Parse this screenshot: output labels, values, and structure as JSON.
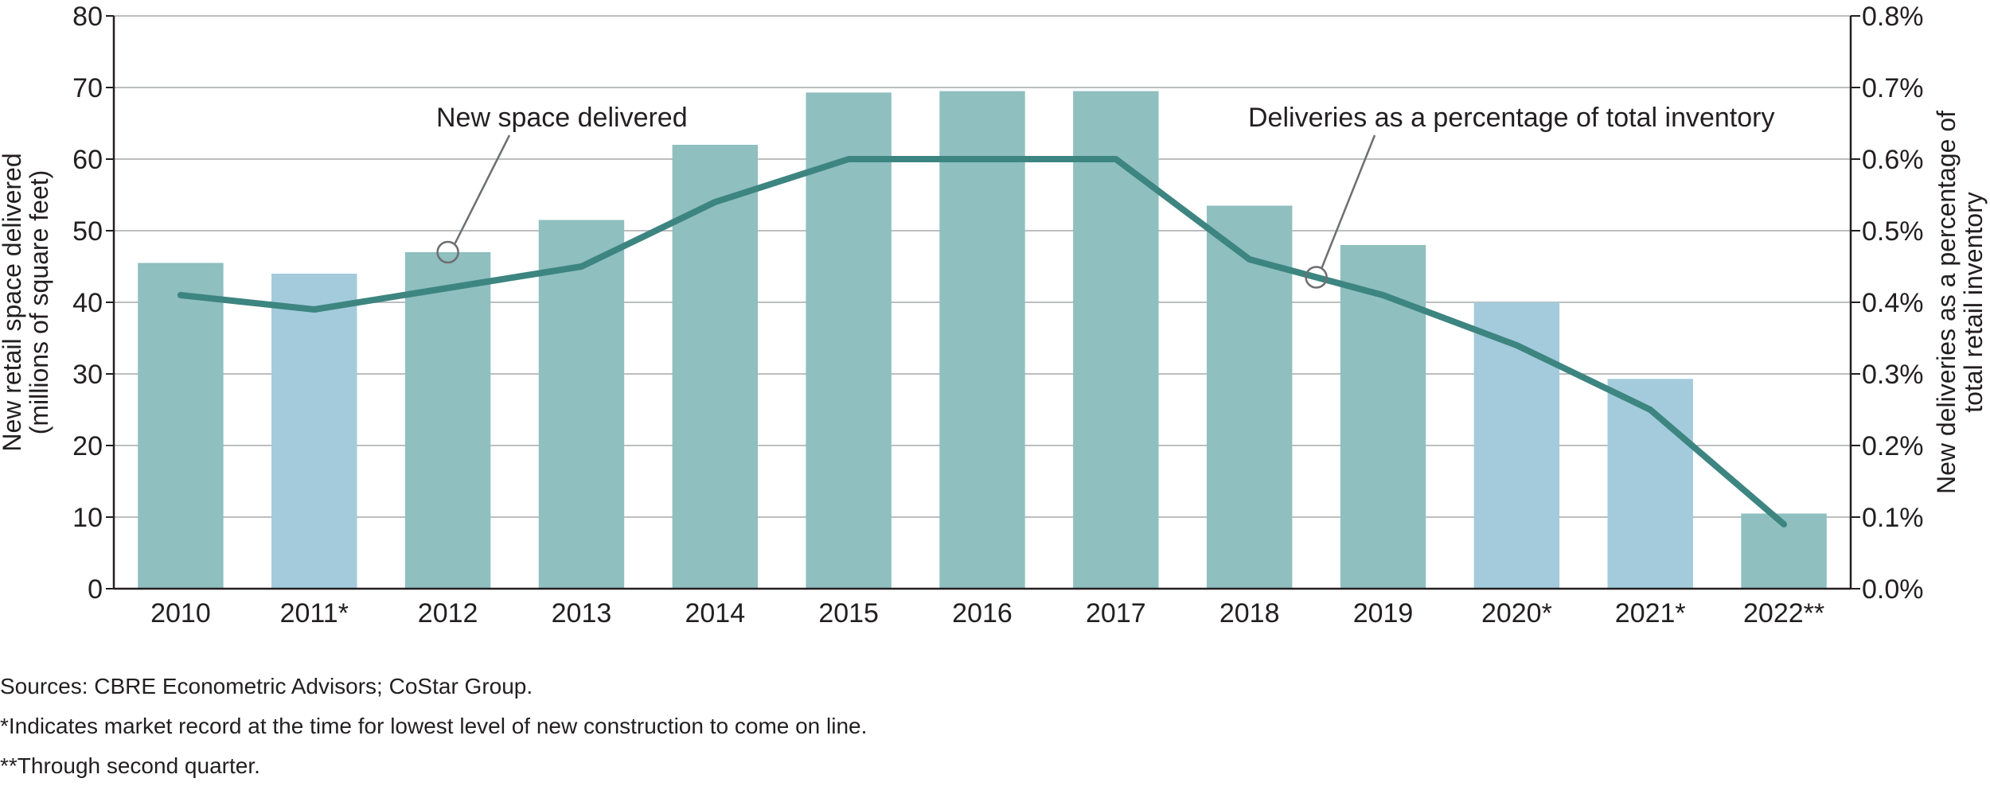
{
  "chart_data": {
    "type": "bar+line",
    "categories": [
      "2010",
      "2011*",
      "2012",
      "2013",
      "2014",
      "2015",
      "2016",
      "2017",
      "2018",
      "2019",
      "2020*",
      "2021*",
      "2022**"
    ],
    "series": [
      {
        "name": "New space delivered",
        "kind": "bar",
        "axis": "left",
        "values": [
          45.5,
          44,
          47,
          51.5,
          62,
          69.3,
          69.5,
          69.5,
          53.5,
          48,
          40,
          29.3,
          10.5
        ],
        "highlight": [
          false,
          true,
          false,
          false,
          false,
          false,
          false,
          false,
          false,
          false,
          true,
          true,
          false
        ]
      },
      {
        "name": "Deliveries as a percentage of total inventory",
        "kind": "line",
        "axis": "right",
        "values": [
          0.41,
          0.39,
          0.42,
          0.45,
          0.54,
          0.6,
          0.6,
          0.6,
          0.46,
          0.41,
          0.34,
          0.25,
          0.09
        ]
      }
    ],
    "ylim": [
      0,
      80
    ],
    "y2lim": [
      0,
      0.8
    ],
    "yticks": [
      "0",
      "10",
      "20",
      "30",
      "40",
      "50",
      "60",
      "70",
      "80"
    ],
    "y2ticks": [
      "0.0%",
      "0.1%",
      "0.2%",
      "0.3%",
      "0.4%",
      "0.5%",
      "0.6%",
      "0.7%",
      "0.8%"
    ],
    "ylabel": [
      "New retail space delivered",
      "(millions of square feet)"
    ],
    "y2label": [
      "New deliveries as a percentage of",
      "total retail inventory"
    ],
    "annotations": [
      {
        "text": "New space delivered",
        "target_series": "New space delivered",
        "target_index": 2
      },
      {
        "text": "Deliveries as a percentage of total inventory",
        "target_series": "Deliveries as a percentage of total inventory",
        "target_index": 8.5
      }
    ],
    "grid": true,
    "colors": {
      "bar": "#8fbfbf",
      "bar_highlight": "#a3cbdc",
      "line": "#3d8580",
      "grid": "#bcbec0",
      "axis": "#231f20",
      "callout": "#6d6e71"
    }
  },
  "notes": {
    "sources": "Sources: CBRE Econometric Advisors; CoStar Group.",
    "note1": "*Indicates market record at the time for lowest level of new construction to come on line.",
    "note2": "**Through second quarter."
  }
}
